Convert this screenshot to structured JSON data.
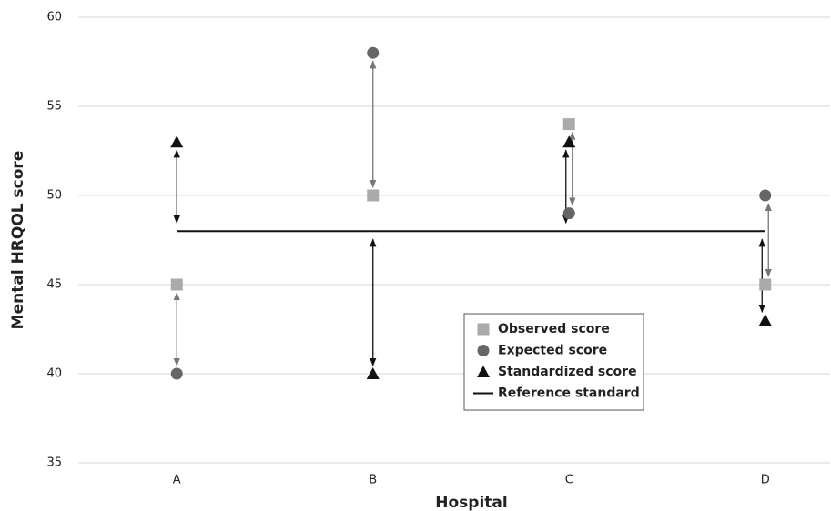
{
  "chart_data": {
    "type": "dot",
    "x_label": "Hospital",
    "y_label": "Mental HRQOL score",
    "categories": [
      "A",
      "B",
      "C",
      "D"
    ],
    "series": [
      {
        "name": "Observed score",
        "color": "#aaaaaa",
        "marker": "square",
        "values": [
          45,
          50,
          54,
          45
        ]
      },
      {
        "name": "Expected score",
        "color": "#666666",
        "marker": "circle",
        "values": [
          40,
          58,
          49,
          50
        ]
      },
      {
        "name": "Standardized score",
        "color": "#111111",
        "marker": "triangle",
        "values": [
          53,
          40,
          53,
          43
        ]
      }
    ],
    "reference": {
      "name": "Reference standard",
      "color": "#111111",
      "value": 48
    },
    "ylim": [
      35,
      60
    ],
    "yticks": [
      35,
      40,
      45,
      50,
      55,
      60
    ],
    "grid": true
  }
}
